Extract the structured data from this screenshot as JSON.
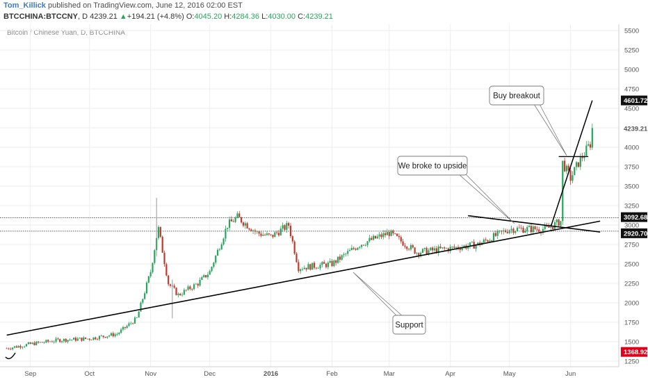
{
  "header": {
    "author": "Tom_Killick",
    "published_text": "published on TradingView.com, June 12, 2016 02:00 EST",
    "symbol": "BTCCHINA:BTCCNY",
    "interval": "D",
    "last": "4239.21",
    "change_arrow": "▲",
    "change": "+194.21 (+4.8%)",
    "o_label": "O:",
    "o_value": "4045.20",
    "h_label": "H:",
    "h_value": "4284.36",
    "l_label": "L:",
    "l_value": "4030.00",
    "c_label": "C:",
    "c_value": "4239.21",
    "subtitle": "Bitcoin / Chinese Yuan, D, BTCCHINA"
  },
  "colors": {
    "up": "#26a65b",
    "down": "#c0392b",
    "grid": "#eeeeee",
    "trendline": "#000000",
    "price_tag_bg": "#e1001b",
    "level_tag_bg": "#111111"
  },
  "chart_data": {
    "type": "candlestick",
    "title": "Bitcoin / Chinese Yuan, D, BTCCHINA",
    "x_ticks": [
      "Sep",
      "Oct",
      "Nov",
      "Dec",
      "2016",
      "Feb",
      "Mar",
      "Apr",
      "May",
      "Jun"
    ],
    "y_ticks": [
      1250,
      1500,
      1750,
      2000,
      2250,
      2500,
      2750,
      3000,
      3250,
      3500,
      3750,
      4000,
      4250,
      4500,
      4750,
      5000,
      5250,
      5500
    ],
    "ylim": [
      1180,
      5580
    ],
    "horizontal_levels": [
      3092.68,
      2920.7
    ],
    "price_labels": [
      "4601.72",
      "4239.21",
      "3092.68",
      "2920.70",
      "1368.92"
    ],
    "annotations": [
      "Buy breakout",
      "We broke to upside",
      "Support"
    ],
    "series_points": [
      {
        "date": "2015-08-20",
        "close": 1415
      },
      {
        "date": "2015-09-01",
        "close": 1470
      },
      {
        "date": "2015-09-15",
        "close": 1520
      },
      {
        "date": "2015-10-01",
        "close": 1540
      },
      {
        "date": "2015-10-15",
        "close": 1600
      },
      {
        "date": "2015-10-25",
        "close": 1800
      },
      {
        "date": "2015-11-01",
        "close": 2400
      },
      {
        "date": "2015-11-04",
        "close": 2850
      },
      {
        "date": "2015-11-05",
        "close": 2950
      },
      {
        "date": "2015-11-10",
        "close": 2250
      },
      {
        "date": "2015-11-15",
        "close": 2100
      },
      {
        "date": "2015-11-25",
        "close": 2250
      },
      {
        "date": "2015-12-01",
        "close": 2400
      },
      {
        "date": "2015-12-10",
        "close": 3000
      },
      {
        "date": "2015-12-15",
        "close": 3100
      },
      {
        "date": "2015-12-25",
        "close": 2900
      },
      {
        "date": "2016-01-01",
        "close": 2850
      },
      {
        "date": "2016-01-10",
        "close": 3000
      },
      {
        "date": "2016-01-15",
        "close": 2450
      },
      {
        "date": "2016-02-01",
        "close": 2500
      },
      {
        "date": "2016-02-15",
        "close": 2750
      },
      {
        "date": "2016-03-01",
        "close": 2900
      },
      {
        "date": "2016-03-15",
        "close": 2650
      },
      {
        "date": "2016-04-01",
        "close": 2700
      },
      {
        "date": "2016-04-15",
        "close": 2750
      },
      {
        "date": "2016-05-01",
        "close": 2950
      },
      {
        "date": "2016-05-20",
        "close": 2950
      },
      {
        "date": "2016-05-27",
        "close": 3050
      },
      {
        "date": "2016-05-28",
        "close": 3800
      },
      {
        "date": "2016-06-01",
        "close": 3600
      },
      {
        "date": "2016-06-05",
        "close": 3800
      },
      {
        "date": "2016-06-11",
        "close": 4045
      },
      {
        "date": "2016-06-12",
        "close": 4239
      }
    ],
    "support_line": {
      "from": {
        "date": "2015-08-20",
        "price": 1585
      },
      "to": {
        "date": "2016-06-16",
        "price": 3050
      }
    },
    "resistance_line": {
      "from": {
        "date": "2016-04-10",
        "price": 3120
      },
      "to": {
        "date": "2016-06-16",
        "price": 2910
      }
    },
    "breakout_line": {
      "from": {
        "date": "2016-05-22",
        "price": 2980
      },
      "to": {
        "date": "2016-06-12",
        "price": 4601.72
      }
    }
  }
}
